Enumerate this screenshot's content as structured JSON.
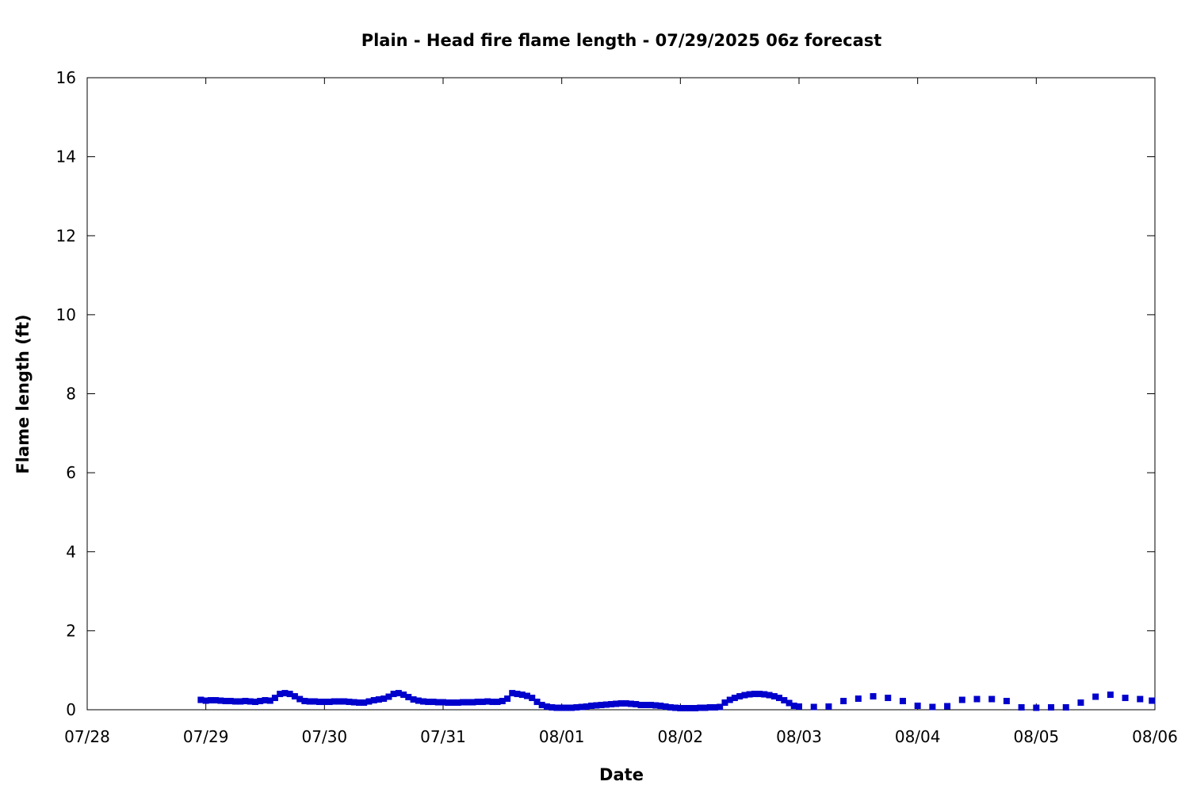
{
  "chart_data": {
    "type": "scatter",
    "title": "Plain - Head fire flame length - 07/29/2025 06z forecast",
    "xlabel": "Date",
    "ylabel": "Flame length (ft)",
    "x_unit": "days since 07/28 00z",
    "xlim": [
      0,
      9
    ],
    "ylim": [
      0,
      16
    ],
    "x_ticks": [
      {
        "value": 0,
        "label": "07/28"
      },
      {
        "value": 1,
        "label": "07/29"
      },
      {
        "value": 2,
        "label": "07/30"
      },
      {
        "value": 3,
        "label": "07/31"
      },
      {
        "value": 4,
        "label": "08/01"
      },
      {
        "value": 5,
        "label": "08/02"
      },
      {
        "value": 6,
        "label": "08/03"
      },
      {
        "value": 7,
        "label": "08/04"
      },
      {
        "value": 8,
        "label": "08/05"
      },
      {
        "value": 9,
        "label": "08/06"
      }
    ],
    "y_ticks": [
      {
        "value": 0,
        "label": "0"
      },
      {
        "value": 2,
        "label": "2"
      },
      {
        "value": 4,
        "label": "4"
      },
      {
        "value": 6,
        "label": "6"
      },
      {
        "value": 8,
        "label": "8"
      },
      {
        "value": 10,
        "label": "10"
      },
      {
        "value": 12,
        "label": "12"
      },
      {
        "value": 14,
        "label": "14"
      },
      {
        "value": 16,
        "label": "16"
      }
    ],
    "grid": false,
    "legend": "none",
    "marker_color": "#0000cc",
    "series": [
      {
        "x": [
          0.958,
          1.0,
          1.042,
          1.083,
          1.125,
          1.167,
          1.208,
          1.25,
          1.292,
          1.333,
          1.375,
          1.417,
          1.458,
          1.5,
          1.542,
          1.583,
          1.625,
          1.667,
          1.708,
          1.75,
          1.792,
          1.833,
          1.875,
          1.917,
          1.958,
          2.0,
          2.042,
          2.083,
          2.125,
          2.167,
          2.208,
          2.25,
          2.292,
          2.333,
          2.375,
          2.417,
          2.458,
          2.5,
          2.542,
          2.583,
          2.625,
          2.667,
          2.708,
          2.75,
          2.792,
          2.833,
          2.875,
          2.917,
          2.958,
          3.0,
          3.042,
          3.083,
          3.125,
          3.167,
          3.208,
          3.25,
          3.292,
          3.333,
          3.375,
          3.417,
          3.458,
          3.5,
          3.542,
          3.583,
          3.625,
          3.667,
          3.708,
          3.75,
          3.792,
          3.833,
          3.875,
          3.917,
          3.958,
          4.0,
          4.042,
          4.083,
          4.125,
          4.167,
          4.208,
          4.25,
          4.292,
          4.333,
          4.375,
          4.417,
          4.458,
          4.5,
          4.542,
          4.583,
          4.625,
          4.667,
          4.708,
          4.75,
          4.792,
          4.833,
          4.875,
          4.917,
          4.958,
          5.0,
          5.042,
          5.083,
          5.125,
          5.167,
          5.208,
          5.25,
          5.292,
          5.333,
          5.375,
          5.417,
          5.458,
          5.5,
          5.542,
          5.583,
          5.625,
          5.667,
          5.708,
          5.75,
          5.792,
          5.833,
          5.875,
          5.917,
          5.958,
          6.0,
          6.125,
          6.25,
          6.375,
          6.5,
          6.625,
          6.75,
          6.875,
          7.0,
          7.125,
          7.25,
          7.375,
          7.5,
          7.625,
          7.75,
          7.875,
          8.0,
          8.125,
          8.25,
          8.375,
          8.5,
          8.625,
          8.75,
          8.875,
          8.975
        ],
        "y": [
          0.25,
          0.23,
          0.24,
          0.24,
          0.23,
          0.22,
          0.22,
          0.21,
          0.21,
          0.22,
          0.21,
          0.2,
          0.22,
          0.24,
          0.23,
          0.3,
          0.4,
          0.42,
          0.4,
          0.34,
          0.27,
          0.22,
          0.21,
          0.21,
          0.2,
          0.2,
          0.2,
          0.21,
          0.21,
          0.21,
          0.2,
          0.19,
          0.18,
          0.18,
          0.21,
          0.24,
          0.26,
          0.28,
          0.33,
          0.4,
          0.42,
          0.38,
          0.32,
          0.26,
          0.23,
          0.21,
          0.2,
          0.2,
          0.19,
          0.19,
          0.18,
          0.18,
          0.18,
          0.19,
          0.19,
          0.19,
          0.2,
          0.2,
          0.21,
          0.2,
          0.2,
          0.22,
          0.28,
          0.42,
          0.4,
          0.38,
          0.35,
          0.3,
          0.2,
          0.12,
          0.08,
          0.06,
          0.05,
          0.05,
          0.05,
          0.05,
          0.06,
          0.07,
          0.08,
          0.1,
          0.11,
          0.12,
          0.13,
          0.14,
          0.15,
          0.16,
          0.16,
          0.15,
          0.14,
          0.12,
          0.12,
          0.12,
          0.11,
          0.1,
          0.08,
          0.06,
          0.05,
          0.04,
          0.04,
          0.04,
          0.04,
          0.05,
          0.05,
          0.06,
          0.06,
          0.07,
          0.18,
          0.25,
          0.3,
          0.34,
          0.37,
          0.39,
          0.4,
          0.4,
          0.39,
          0.37,
          0.34,
          0.3,
          0.24,
          0.17,
          0.1,
          0.08,
          0.07,
          0.08,
          0.22,
          0.28,
          0.34,
          0.3,
          0.22,
          0.1,
          0.07,
          0.09,
          0.25,
          0.27,
          0.27,
          0.22,
          0.06,
          0.05,
          0.06,
          0.06,
          0.18,
          0.33,
          0.38,
          0.3,
          0.27,
          0.23
        ]
      }
    ]
  }
}
